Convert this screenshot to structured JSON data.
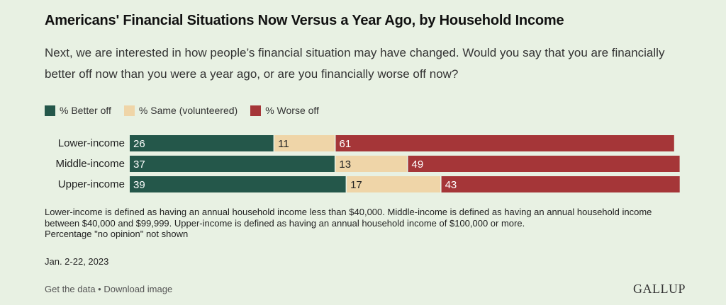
{
  "header": {
    "title": "Americans' Financial Situations Now Versus a Year Ago, by Household Income",
    "subtitle": "Next, we are interested in how people’s financial situation may have changed. Would you say that you are financially better off now than you were a year ago, or are you financially worse off now?"
  },
  "colors": {
    "better": "#24574a",
    "same": "#efd5a8",
    "worse": "#a53638"
  },
  "chart_data": {
    "type": "bar",
    "orientation": "horizontal",
    "stacked": true,
    "categories": [
      "Lower-income",
      "Middle-income",
      "Upper-income"
    ],
    "series": [
      {
        "name": "% Better off",
        "values": [
          26,
          37,
          39
        ]
      },
      {
        "name": "% Same (volunteered)",
        "values": [
          11,
          13,
          17
        ]
      },
      {
        "name": "% Worse off",
        "values": [
          61,
          49,
          43
        ]
      }
    ],
    "xlim": [
      0,
      100
    ],
    "legend": "top-left",
    "grid": false
  },
  "notes": {
    "definition": "Lower-income is defined as having an annual household income less than $40,000. Middle-income is defined as having an annual household income between $40,000 and $99,999. Upper-income is defined as having an annual household income of $100,000 or more.",
    "no_opinion": "Percentage \"no opinion\" not shown",
    "date": "Jan. 2-22, 2023"
  },
  "footer": {
    "get_data": "Get the data",
    "separator": " • ",
    "download": "Download image",
    "logo": "GALLUP"
  }
}
